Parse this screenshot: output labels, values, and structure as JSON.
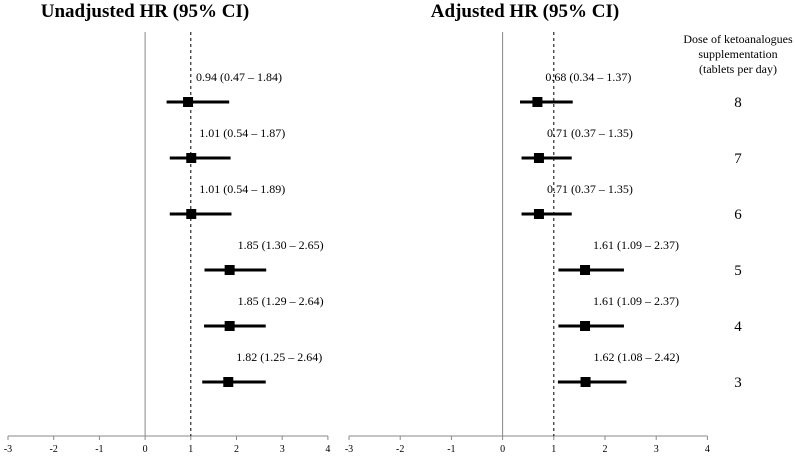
{
  "chart_data": [
    {
      "type": "forest",
      "title": "Unadjusted HR (95% CI)",
      "xlim": [
        -3,
        4
      ],
      "xticks": [
        "-3",
        "-2",
        "-1",
        "0",
        "1",
        "2",
        "3",
        "4"
      ],
      "reference_line": 1,
      "points": [
        {
          "dose": "8",
          "hr": 0.94,
          "lo": 0.47,
          "hi": 1.84,
          "label": "0.94 (0.47 – 1.84)"
        },
        {
          "dose": "7",
          "hr": 1.01,
          "lo": 0.54,
          "hi": 1.87,
          "label": "1.01 (0.54 – 1.87)"
        },
        {
          "dose": "6",
          "hr": 1.01,
          "lo": 0.54,
          "hi": 1.89,
          "label": "1.01 (0.54 – 1.89)"
        },
        {
          "dose": "5",
          "hr": 1.85,
          "lo": 1.3,
          "hi": 2.65,
          "label": "1.85 (1.30 – 2.65)"
        },
        {
          "dose": "4",
          "hr": 1.85,
          "lo": 1.29,
          "hi": 2.64,
          "label": "1.85 (1.29 – 2.64)"
        },
        {
          "dose": "3",
          "hr": 1.82,
          "lo": 1.25,
          "hi": 2.64,
          "label": "1.82 (1.25 – 2.64)"
        }
      ]
    },
    {
      "type": "forest",
      "title": "Adjusted HR (95% CI)",
      "xlim": [
        -3,
        4
      ],
      "xticks": [
        "-3",
        "-2",
        "-1",
        "0",
        "1",
        "2",
        "3",
        "4"
      ],
      "reference_line": 1,
      "points": [
        {
          "dose": "8",
          "hr": 0.68,
          "lo": 0.34,
          "hi": 1.37,
          "label": "0.68 (0.34 – 1.37)"
        },
        {
          "dose": "7",
          "hr": 0.71,
          "lo": 0.37,
          "hi": 1.35,
          "label": "0.71 (0.37 – 1.35)"
        },
        {
          "dose": "6",
          "hr": 0.71,
          "lo": 0.37,
          "hi": 1.35,
          "label": "0.71 (0.37 – 1.35)"
        },
        {
          "dose": "5",
          "hr": 1.61,
          "lo": 1.09,
          "hi": 2.37,
          "label": "1.61 (1.09 – 2.37)"
        },
        {
          "dose": "4",
          "hr": 1.61,
          "lo": 1.09,
          "hi": 2.37,
          "label": "1.61 (1.09 – 2.37)"
        },
        {
          "dose": "3",
          "hr": 1.62,
          "lo": 1.08,
          "hi": 2.42,
          "label": "1.62 (1.08 – 2.42)"
        }
      ]
    }
  ],
  "dose_column": {
    "title_lines": [
      "Dose of ketoanalogues",
      "supplementation",
      "(tablets per day)"
    ],
    "doses": [
      "8",
      "7",
      "6",
      "5",
      "4",
      "3"
    ]
  },
  "colors": {
    "marks": "#000000",
    "axis": "#888888"
  }
}
